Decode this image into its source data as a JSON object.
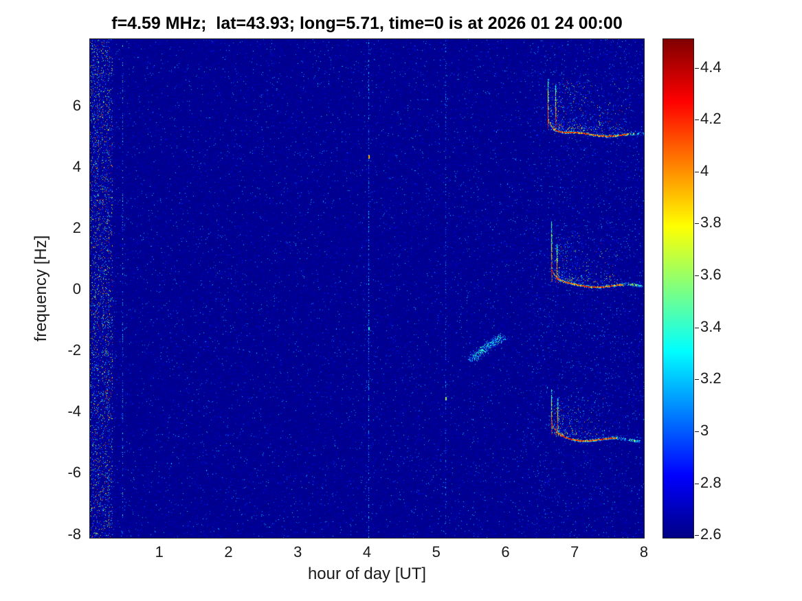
{
  "chart_data": {
    "type": "heatmap",
    "title": "f=4.59 MHz;  lat=43.93; long=5.71, time=0 is at 2026 01 24 00:00",
    "xlabel": "hour of day [UT]",
    "ylabel": "frequency [Hz]",
    "x_range": [
      0,
      8
    ],
    "y_range": [
      -8.1,
      8.2
    ],
    "x_ticks": [
      1,
      2,
      3,
      4,
      5,
      6,
      7,
      8
    ],
    "y_ticks": [
      -8,
      -6,
      -4,
      -2,
      0,
      2,
      4,
      6
    ],
    "grid": false,
    "seed": 7,
    "colorbar": {
      "colormap": "jet",
      "min": 2.59,
      "max": 4.51,
      "ticks": [
        2.6,
        2.8,
        3,
        3.2,
        3.4,
        3.6,
        3.8,
        4,
        4.2,
        4.4
      ],
      "position": "right"
    },
    "background": {
      "base_value": 2.6,
      "description": "dark blue noise floor with sparse light-blue speckles, speckle density higher after 6.3 UT"
    },
    "features": [
      {
        "type": "noise_band",
        "x": [
          0.0,
          0.32
        ],
        "density": 0.22,
        "values": [
          2.7,
          4.3
        ],
        "note": "broadband noisy stripe at left edge"
      },
      {
        "type": "vline",
        "x": 0.47,
        "y": [
          -8.1,
          8.2
        ],
        "density": 0.22,
        "values": [
          2.75,
          3.6
        ]
      },
      {
        "type": "vline",
        "x": 4.02,
        "y": [
          -8.1,
          8.2
        ],
        "density": 0.45,
        "values": [
          2.8,
          3.45
        ],
        "highlights": [
          {
            "y": 4.35,
            "value": 4.2
          },
          {
            "y": -1.25,
            "value": 3.6
          }
        ]
      },
      {
        "type": "vline",
        "x": 5.13,
        "y": [
          -8.1,
          8.2
        ],
        "density": 0.3,
        "values": [
          2.75,
          3.3
        ],
        "highlights": [
          {
            "y": -3.55,
            "value": 3.9
          }
        ]
      },
      {
        "type": "scatter_line",
        "points": [
          [
            2.6,
            6.85
          ],
          [
            3.9,
            7.3
          ],
          [
            4.7,
            7.05
          ],
          [
            5.6,
            6.9
          ],
          [
            6.6,
            7.15
          ],
          [
            8.0,
            6.9
          ]
        ],
        "density": 0.13,
        "values": [
          2.85,
          3.3
        ],
        "note": "faint diffuse trace near top of band"
      },
      {
        "type": "blob",
        "from": [
          5.5,
          -2.25
        ],
        "to": [
          5.95,
          -1.5
        ],
        "spread": [
          0.14,
          0.2
        ],
        "count": 500,
        "values": [
          2.9,
          3.55
        ],
        "note": "weak cyan patch near 5.7 UT, -2 Hz"
      },
      {
        "type": "event",
        "trace_y": 5.12,
        "trace_x": [
          6.62,
          8.0
        ],
        "approach": 0.5,
        "fade_x": 7.78,
        "spikes": [
          {
            "x": 6.615,
            "y": [
              5.25,
              6.9
            ]
          },
          {
            "x": 6.72,
            "y": [
              5.25,
              6.7
            ]
          }
        ],
        "cloud": {
          "x": [
            6.65,
            7.8
          ],
          "dy": [
            0,
            1.6
          ],
          "count": 1600
        },
        "note": "strong red Doppler trace near +5 Hz starting ~6.6 UT"
      },
      {
        "type": "event",
        "trace_y": 0.18,
        "trace_x": [
          6.66,
          7.97
        ],
        "approach": 0.55,
        "fade_x": 7.7,
        "spikes": [
          {
            "x": 6.66,
            "y": [
              0.3,
              2.25
            ]
          },
          {
            "x": 6.74,
            "y": [
              0.3,
              1.5
            ]
          }
        ],
        "cloud": {
          "x": [
            6.7,
            7.62
          ],
          "dy": [
            0,
            1.5
          ],
          "count": 1200
        },
        "note": "strong red Doppler trace near 0 Hz starting ~6.6 UT"
      },
      {
        "type": "event",
        "trace_y": -4.85,
        "trace_x": [
          6.66,
          7.95
        ],
        "approach": 0.5,
        "fade_x": 7.6,
        "spikes": [
          {
            "x": 6.66,
            "y": [
              -4.7,
              -3.25
            ]
          },
          {
            "x": 6.75,
            "y": [
              -4.7,
              -3.55
            ]
          }
        ],
        "cloud": {
          "x": [
            6.7,
            7.5
          ],
          "dy": [
            0,
            1.25
          ],
          "count": 900
        },
        "note": "strong red Doppler trace near -5 Hz starting ~6.6 UT"
      }
    ]
  }
}
